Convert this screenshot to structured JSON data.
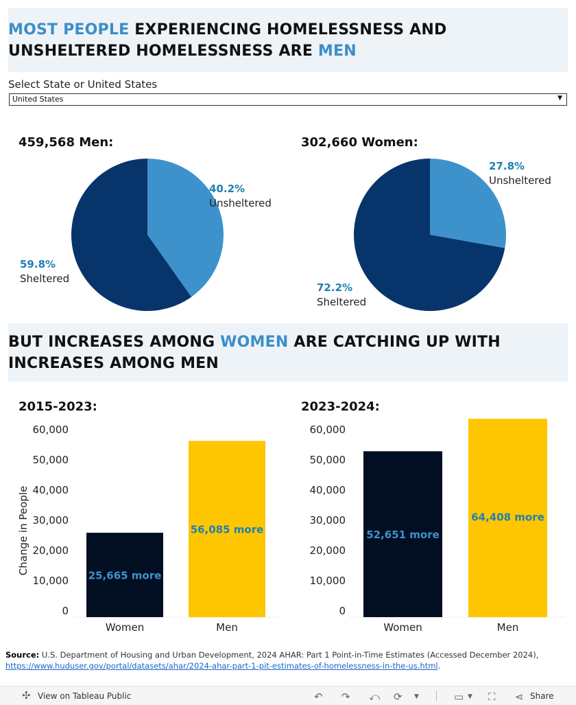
{
  "header1": {
    "part1": "MOST PEOPLE",
    "part2": " EXPERIENCING HOMELESSNESS AND",
    "part3": "UNSHELTERED HOMELESSNESS ARE ",
    "part4": "MEN"
  },
  "selector": {
    "label": "Select State or United States",
    "value": "United States"
  },
  "header2": {
    "part1": "BUT INCREASES AMONG ",
    "part2": "WOMEN",
    "part3": " ARE CATCHING UP WITH",
    "part4": "INCREASES AMONG MEN"
  },
  "colors": {
    "sheltered": "#07356b",
    "unsheltered": "#3d92cc",
    "women_bar": "#020f22",
    "men_bar": "#fec600",
    "accent": "#3a8fc8"
  },
  "chart_data": [
    {
      "type": "pie",
      "title": "459,568 Men:",
      "slices": [
        {
          "pct_label": "40.2%",
          "name": "Unsheltered",
          "value": 40.2
        },
        {
          "pct_label": "59.8%",
          "name": "Sheltered",
          "value": 59.8
        }
      ]
    },
    {
      "type": "pie",
      "title": "302,660 Women:",
      "slices": [
        {
          "pct_label": "27.8%",
          "name": "Unsheltered",
          "value": 27.8
        },
        {
          "pct_label": "72.2%",
          "name": "Sheltered",
          "value": 72.2
        }
      ]
    },
    {
      "type": "bar",
      "title": "2015-2023:",
      "ylabel": "Change in People",
      "ylim": [
        0,
        60000
      ],
      "yticks": [
        "60,000",
        "50,000",
        "40,000",
        "30,000",
        "20,000",
        "10,000",
        "0"
      ],
      "categories": [
        "Women",
        "Men"
      ],
      "values": [
        25665,
        56085
      ],
      "data_labels": [
        "25,665 more",
        "56,085 more"
      ]
    },
    {
      "type": "bar",
      "title": "2023-2024:",
      "ylabel": "",
      "ylim": [
        0,
        60000
      ],
      "yticks": [
        "60,000",
        "50,000",
        "40,000",
        "30,000",
        "20,000",
        "10,000",
        "0"
      ],
      "categories": [
        "Women",
        "Men"
      ],
      "values": [
        52651,
        64408
      ],
      "data_labels": [
        "52,651 more",
        "64,408 more"
      ]
    }
  ],
  "source": {
    "label": "Source:",
    "text": " U.S. Department of Housing and Urban Development, 2024 AHAR: Part 1 Point-in-Time Estimates (Accessed December 2024),",
    "link": "https://www.huduser.gov/portal/datasets/ahar/2024-ahar-part-1-pit-estimates-of-homelessness-in-the-us.html",
    "end": "."
  },
  "toolbar": {
    "view_label": "View on Tableau Public",
    "share_label": "Share"
  }
}
